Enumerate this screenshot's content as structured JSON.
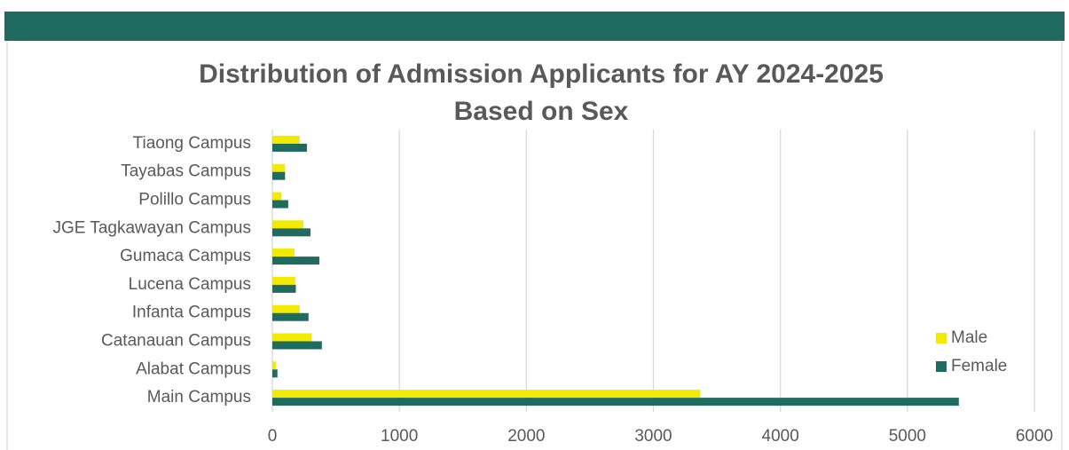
{
  "chart_data": {
    "type": "bar",
    "orientation": "horizontal",
    "title": "Distribution of Admission Applicants for AY 2024-2025 Based on Sex",
    "categories": [
      "Main Campus",
      "Alabat Campus",
      "Catanauan Campus",
      "Infanta Campus",
      "Lucena Campus",
      "Gumaca Campus",
      "JGE Tagkawayan Campus",
      "Polillo Campus",
      "Tayabas Campus",
      "Tiaong Campus"
    ],
    "series": [
      {
        "name": "Male",
        "color": "#f2ea00",
        "values": [
          3370,
          30,
          310,
          215,
          180,
          175,
          245,
          70,
          100,
          215
        ]
      },
      {
        "name": "Female",
        "color": "#1f6b5f",
        "values": [
          5405,
          40,
          390,
          285,
          185,
          370,
          300,
          125,
          100,
          272
        ]
      }
    ],
    "xlim": [
      0,
      6000
    ],
    "xticks": [
      0,
      1000,
      2000,
      3000,
      4000,
      5000,
      6000
    ],
    "grid": true,
    "legend": "right"
  }
}
